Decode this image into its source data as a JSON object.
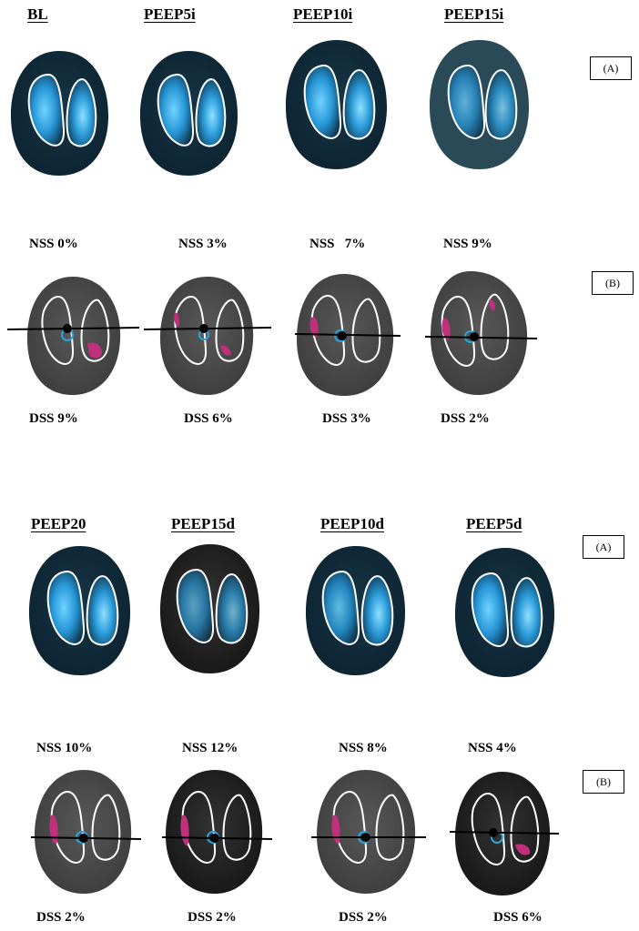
{
  "block1": {
    "headers": [
      "BL",
      "PEEP5i",
      "PEEP10i",
      "PEEP15i"
    ],
    "tag_a": "(A)",
    "tag_b": "(B)",
    "nss": [
      "NSS 0%",
      "NSS 3%",
      "NSS   7%",
      "NSS 9%"
    ],
    "dss": [
      "DSS 9%",
      "DSS 6%",
      "DSS 3%",
      "DSS 2%"
    ]
  },
  "block2": {
    "headers": [
      "PEEP20",
      "PEEP15d",
      "PEEP10d",
      "PEEP5d"
    ],
    "tag_a": "(A)",
    "tag_b": "(B)",
    "nss": [
      "NSS 10%",
      "NSS 12%",
      "NSS 8%",
      "NSS 4%"
    ],
    "dss": [
      "DSS 2%",
      "DSS 2%",
      "DSS 2%",
      "DSS 6%"
    ]
  },
  "colors": {
    "eit_background": "#0f2a38",
    "ventilation": "#29a3e6",
    "overdistension": "#c0307d",
    "center_marker": "#2aa4d8",
    "lung_outline": "#ffffff",
    "gray_background": "#4a4a4a"
  }
}
